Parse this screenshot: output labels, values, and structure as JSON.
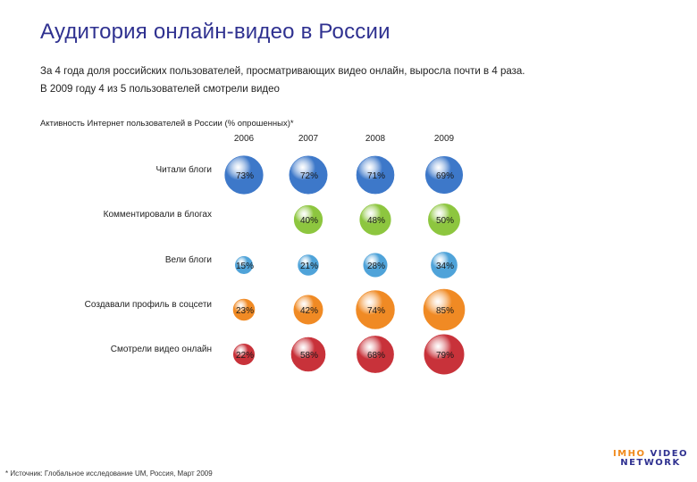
{
  "header": {
    "title": "Аудитория онлайн-видео в России",
    "subtitle_line1": "За 4 года доля российских пользователей, просматривающих видео онлайн, выросла почти в 4 раза.",
    "subtitle_line2": "В 2009 году  4 из 5 пользователей смотрели видео"
  },
  "chart_data": {
    "type": "bubble",
    "title": "Активность Интернет пользователей в России (% опрошенных)*",
    "years": [
      "2006",
      "2007",
      "2008",
      "2009"
    ],
    "rows": [
      {
        "label": "Читали блоги",
        "color": "#3d78c9",
        "values": [
          73,
          72,
          71,
          69
        ]
      },
      {
        "label": "Комментировали в блогах",
        "color": "#8dc63f",
        "values": [
          null,
          40,
          48,
          50
        ]
      },
      {
        "label": "Вели блоги",
        "color": "#4fa3d9",
        "values": [
          15,
          21,
          28,
          34
        ]
      },
      {
        "label": "Создавали профиль в соцсети",
        "color": "#f08a24",
        "values": [
          23,
          42,
          74,
          85
        ]
      },
      {
        "label": "Смотрели видео онлайн",
        "color": "#c8323a",
        "values": [
          22,
          58,
          68,
          79
        ]
      }
    ]
  },
  "footnote": "* Источник: Глобальное исследование UM, Россия, Март 2009",
  "logo": {
    "line1_a": "IMHO",
    "line1_b": "VIDEO",
    "line2": "NETWORK"
  }
}
